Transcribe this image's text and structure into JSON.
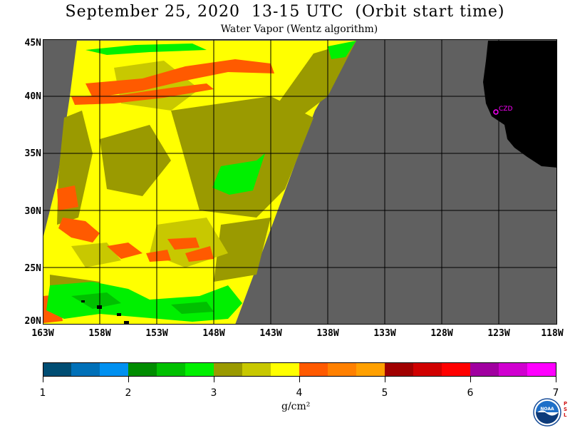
{
  "header": {
    "title": "September 25, 2020  13-15 UTC  (Orbit start time)",
    "subtitle": "Water Vapor (Wentz algorithm)"
  },
  "map": {
    "lat_labels": [
      "45N",
      "40N",
      "35N",
      "30N",
      "25N",
      "20N"
    ],
    "lon_labels": [
      "163W",
      "158W",
      "153W",
      "148W",
      "143W",
      "138W",
      "133W",
      "128W",
      "123W",
      "118W"
    ],
    "station_label": "CZD",
    "colors": {
      "land": "#000000",
      "no_data": "#606060",
      "grid": "#000000",
      "station": "#ff00ff"
    }
  },
  "colorbar": {
    "tick_labels": [
      "1",
      "2",
      "3",
      "4",
      "5",
      "6",
      "7"
    ],
    "units": "g/cm²",
    "colors": [
      "#004d73",
      "#0070b8",
      "#0090f0",
      "#008c00",
      "#00c000",
      "#00f000",
      "#9a9a00",
      "#c8c800",
      "#ffff00",
      "#ff5a00",
      "#ff8000",
      "#ffa000",
      "#a00000",
      "#d00000",
      "#ff0000",
      "#a000a0",
      "#d000d0",
      "#ff00ff"
    ]
  },
  "logo": {
    "text": "NOAA",
    "side_text": "PSL"
  }
}
